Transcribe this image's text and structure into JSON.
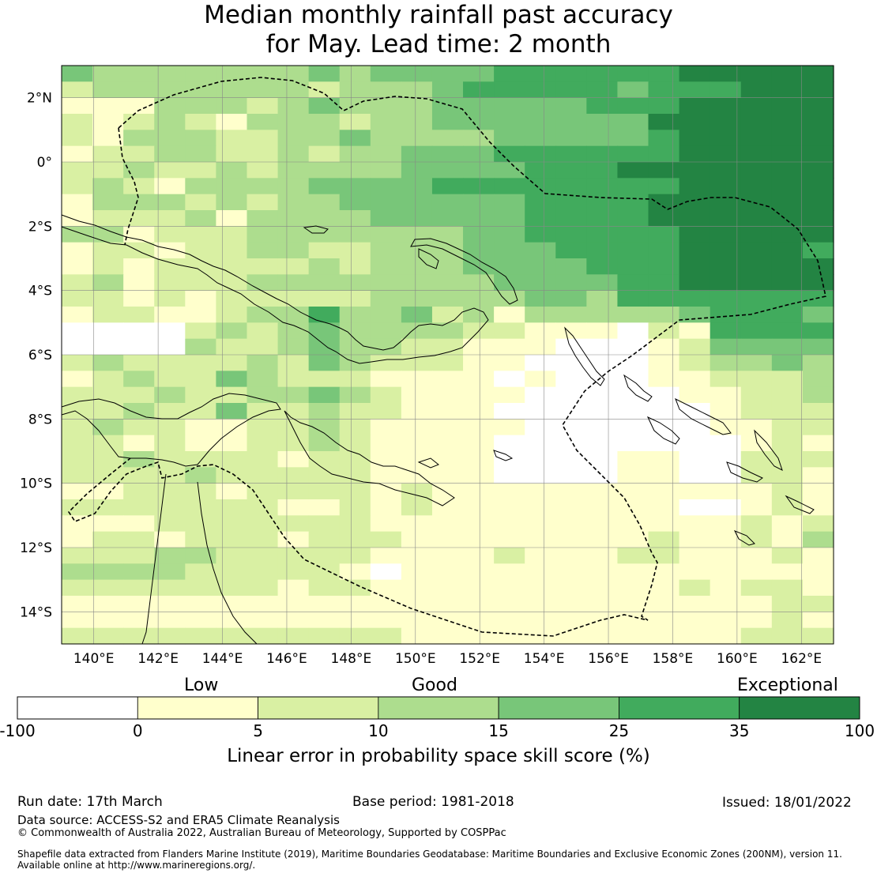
{
  "title": {
    "line1": "Median monthly rainfall past accuracy",
    "line2": "for May. Lead time: 2 month"
  },
  "map": {
    "lon_range": [
      139,
      163
    ],
    "lat_range": [
      -15,
      3
    ],
    "lon_ticks": [
      "140°E",
      "142°E",
      "144°E",
      "146°E",
      "148°E",
      "150°E",
      "152°E",
      "154°E",
      "156°E",
      "158°E",
      "160°E",
      "162°E"
    ],
    "lat_ticks": [
      "2°N",
      "0°",
      "2°S",
      "4°S",
      "6°S",
      "8°S",
      "10°S",
      "12°S",
      "14°S"
    ],
    "grid": true,
    "category_colors": [
      "#ffffff",
      "#ffffcc",
      "#d9f0a3",
      "#addd8e",
      "#78c679",
      "#41ab5d",
      "#238443"
    ],
    "skill_grid_rows_north_to_south": [
      "4333333343444455555566666",
      "2333333323334555554555666",
      "1113332343334444455566666",
      "2123213332334444444666666",
      "2133322334333344444566666",
      "1223322323344455555566666",
      "2232232333344445556666666",
      "2321333344445555555566666",
      "1333232334444445555666666",
      "1222313333444445555666666",
      "3312223333333445555566666",
      "1221223322333444555566665",
      "1212222232333444455566666",
      "2312223333333344445566666",
      "2212122222333334435555555",
      "1221123353342313333345554",
      "0000232343333221110215555",
      "0000322343322111000124444",
      "2322223243222110000123343",
      "1232243222111101000112223",
      "2223223343211110000011223",
      "2232242232211100000001222",
      "2322112232111110000001122",
      "2212112232111100000000121",
      "2232222122111100001100222",
      "2222322222111100001100221",
      "1122212222121111111111121",
      "2222222112121111111100121",
      "1112222222111111111111212",
      "1221222122211111111211213",
      "2223322222111121112211121",
      "3333222221011111111111111",
      "2222222122111111111121221",
      "1111111111111111111111122",
      "1111111111111111111111121",
      "2222222222211111111111222"
    ]
  },
  "colorbar": {
    "ticks": [
      "-100",
      "0",
      "5",
      "10",
      "15",
      "25",
      "35",
      "100"
    ],
    "categories": [
      "Low",
      "Good",
      "Exceptional"
    ],
    "xlabel": "Linear error in probability space skill score (%)"
  },
  "footer": {
    "run_date": "Run date: 17th March",
    "base_period": "Base period: 1981-2018",
    "issued": "Issued: 18/01/2022",
    "data_source": "Data source: ACCESS-S2 and ERA5 Climate Reanalysis",
    "copyright": "© Commonwealth of Australia 2022, Australian Bureau of Meteorology, Supported by COSPPac",
    "shapefile_line1": "Shapefile data extracted from Flanders Marine Institute (2019), Maritime Boundaries Geodatabase: Maritime Boundaries and Exclusive Economic Zones (200NM), version 11.",
    "shapefile_line2": "Available online at http://www.marineregions.org/."
  }
}
